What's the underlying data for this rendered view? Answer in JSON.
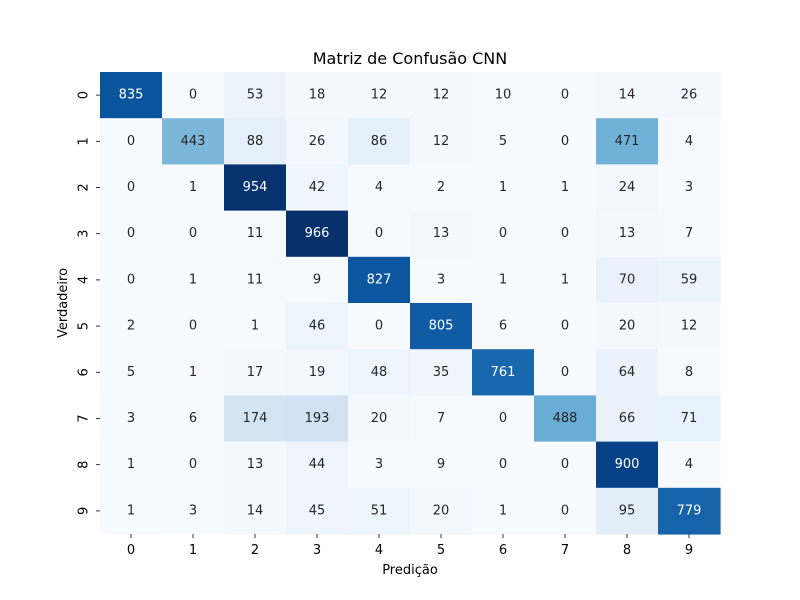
{
  "chart_data": {
    "type": "heatmap",
    "title": "Matriz de Confusão CNN",
    "xlabel": "Predição",
    "ylabel": "Verdadeiro",
    "x_categories": [
      "0",
      "1",
      "2",
      "3",
      "4",
      "5",
      "6",
      "7",
      "8",
      "9"
    ],
    "y_categories": [
      "0",
      "1",
      "2",
      "3",
      "4",
      "5",
      "6",
      "7",
      "8",
      "9"
    ],
    "values": [
      [
        835,
        0,
        53,
        18,
        12,
        12,
        10,
        0,
        14,
        26
      ],
      [
        0,
        443,
        88,
        26,
        86,
        12,
        5,
        0,
        471,
        4
      ],
      [
        0,
        1,
        954,
        42,
        4,
        2,
        1,
        1,
        24,
        3
      ],
      [
        0,
        0,
        11,
        966,
        0,
        13,
        0,
        0,
        13,
        7
      ],
      [
        0,
        1,
        11,
        9,
        827,
        3,
        1,
        1,
        70,
        59
      ],
      [
        2,
        0,
        1,
        46,
        0,
        805,
        6,
        0,
        20,
        12
      ],
      [
        5,
        1,
        17,
        19,
        48,
        35,
        761,
        0,
        64,
        8
      ],
      [
        3,
        6,
        174,
        193,
        20,
        7,
        0,
        488,
        66,
        71
      ],
      [
        1,
        0,
        13,
        44,
        3,
        9,
        0,
        0,
        900,
        4
      ],
      [
        1,
        3,
        14,
        45,
        51,
        20,
        1,
        0,
        95,
        779
      ]
    ],
    "colormap": "Blues",
    "color_low": "#f7fbff",
    "color_high": "#08306b",
    "annotations": true,
    "colorbar": false,
    "grid": false
  }
}
